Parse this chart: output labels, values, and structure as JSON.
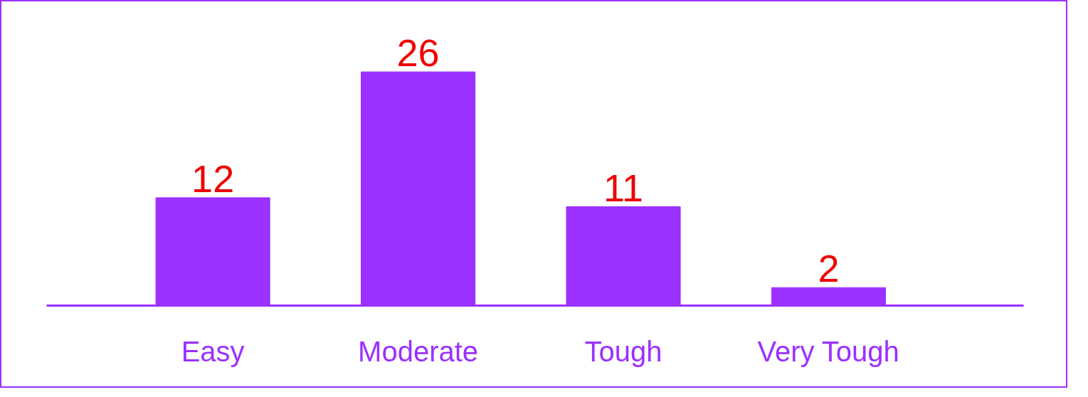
{
  "chart_data": {
    "type": "bar",
    "categories": [
      "Easy",
      "Moderate",
      "Tough",
      "Very Tough"
    ],
    "values": [
      12,
      26,
      11,
      2
    ],
    "color": "#9b30ff",
    "data_labels": true,
    "grid": false
  }
}
